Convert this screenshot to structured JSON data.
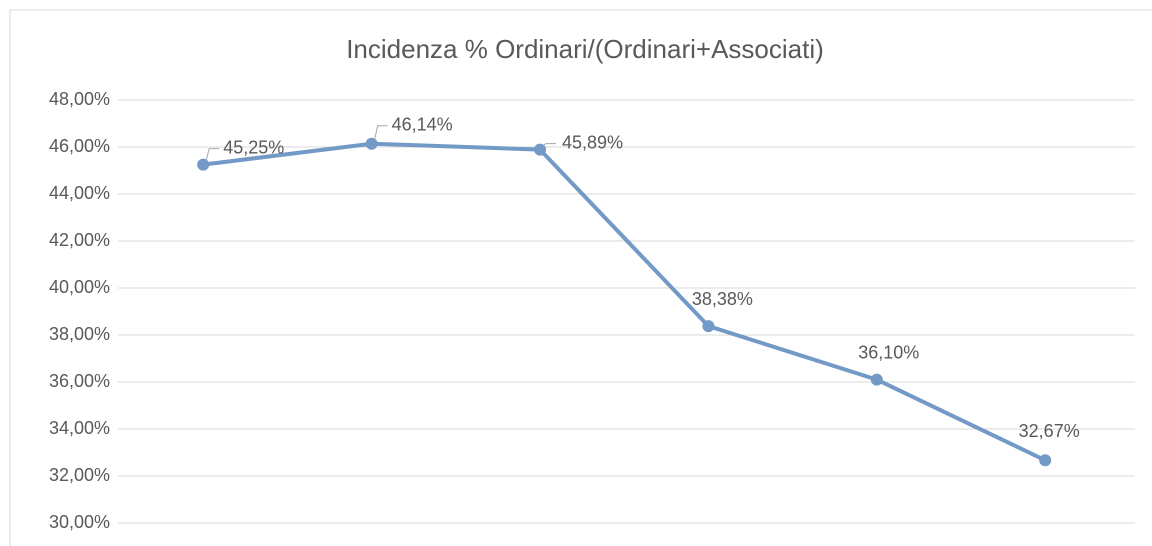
{
  "chart_data": {
    "type": "line",
    "title": "Incidenza % Ordinari/(Ordinari+Associati)",
    "categories": [
      null,
      null,
      null,
      null,
      null,
      null
    ],
    "series": [
      {
        "name": null,
        "color": "#7399c6",
        "values": [
          45.25,
          46.14,
          45.89,
          38.38,
          36.1,
          32.67
        ],
        "value_labels": [
          "45,25%",
          "46,14%",
          "45,89%",
          "38,38%",
          "36,10%",
          "32,67%"
        ]
      }
    ],
    "ylim": [
      30,
      48
    ],
    "yticks": [
      {
        "value": 30,
        "label": "30,00%"
      },
      {
        "value": 32,
        "label": "32,00%"
      },
      {
        "value": 34,
        "label": "34,00%"
      },
      {
        "value": 36,
        "label": "36,00%"
      },
      {
        "value": 38,
        "label": "38,00%"
      },
      {
        "value": 40,
        "label": "40,00%"
      },
      {
        "value": 42,
        "label": "42,00%"
      },
      {
        "value": 44,
        "label": "44,00%"
      },
      {
        "value": 46,
        "label": "46,00%"
      },
      {
        "value": 48,
        "label": "48,00%"
      }
    ],
    "grid": true
  }
}
